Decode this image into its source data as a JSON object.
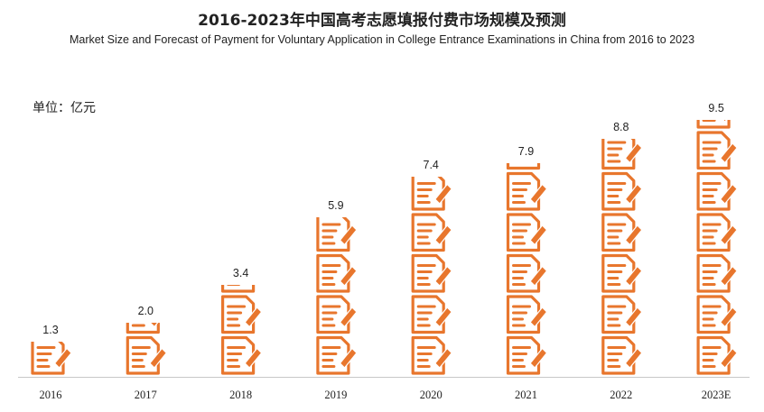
{
  "title": "2016-2023年中国高考志愿填报付费市场规模及预测",
  "subtitle": "Market Size and Forecast of Payment for Voluntary Application in College Entrance Examinations in China from 2016 to 2023",
  "unit_label": "单位：亿元",
  "colors": {
    "icon": "#E8762D",
    "axis": "#c8c8c8",
    "text": "#222222"
  },
  "chart_data": {
    "type": "bar",
    "bar_style": "pictograph",
    "icon": "document-pencil-icon",
    "categories": [
      "2016",
      "2017",
      "2018",
      "2019",
      "2020",
      "2021",
      "2022",
      "2023E"
    ],
    "values": [
      1.3,
      2.0,
      3.4,
      5.9,
      7.4,
      7.9,
      8.8,
      9.5
    ],
    "data_labels": [
      "1.3",
      "2.0",
      "3.4",
      "5.9",
      "7.4",
      "7.9",
      "8.8",
      "9.5"
    ],
    "title": "2016-2023年中国高考志愿填报付费市场规模及预测",
    "ylabel": "单位：亿元",
    "ylim": [
      0,
      10
    ],
    "grid": false
  }
}
